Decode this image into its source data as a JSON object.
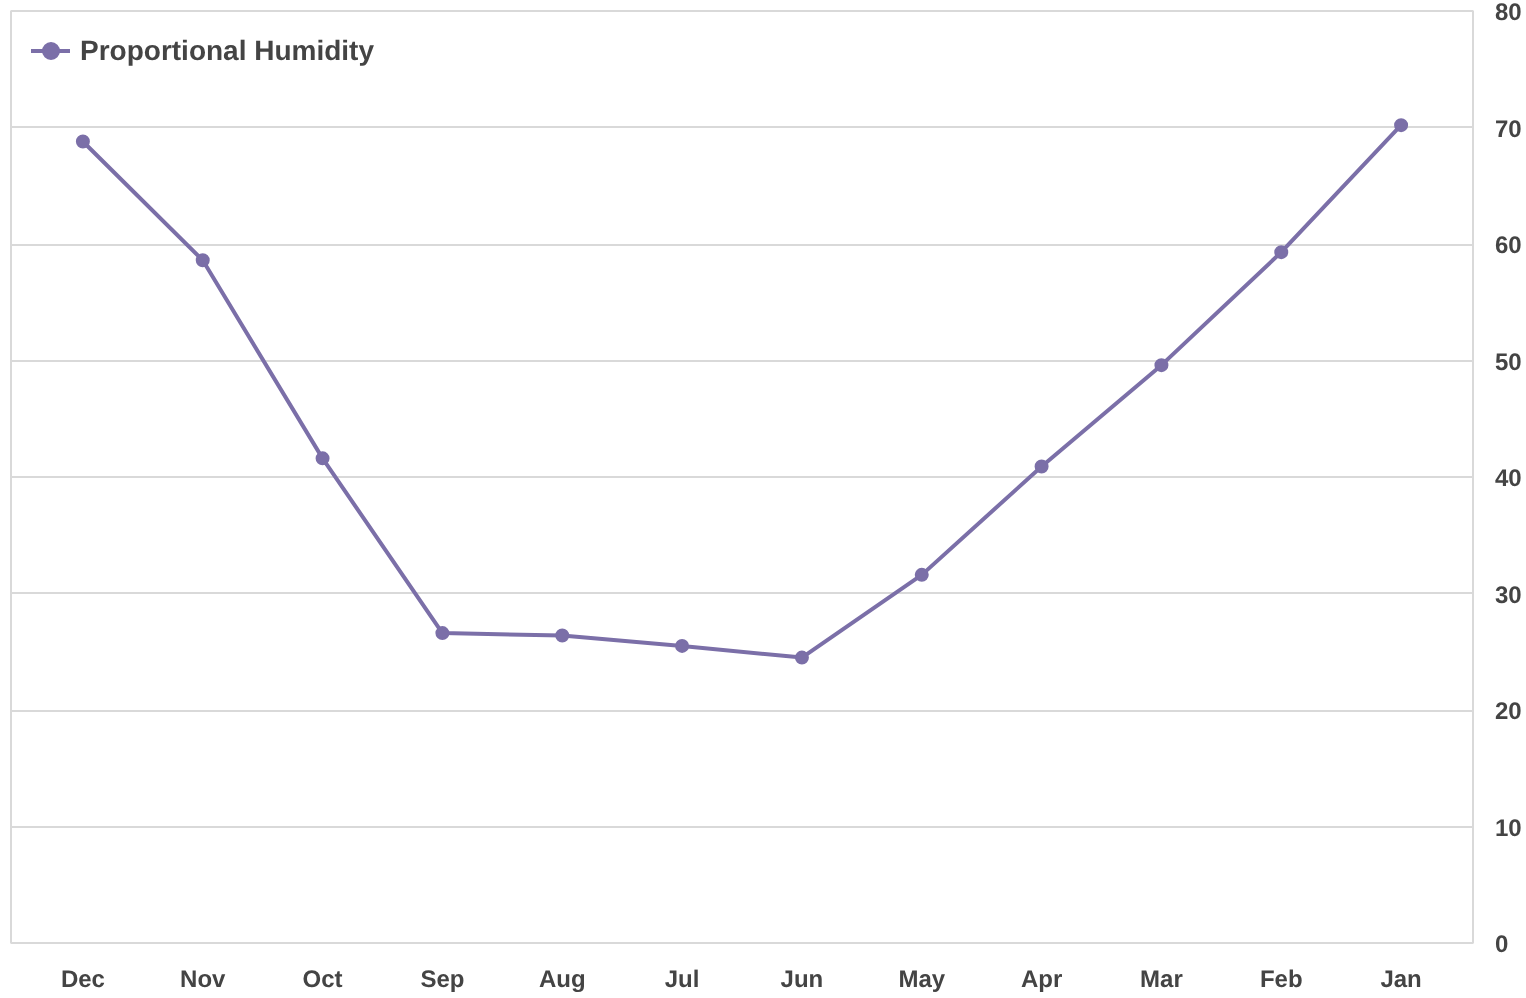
{
  "chart_data": {
    "type": "line",
    "categories": [
      "Dec",
      "Nov",
      "Oct",
      "Sep",
      "Aug",
      "Jul",
      "Jun",
      "May",
      "Apr",
      "Mar",
      "Feb",
      "Jan"
    ],
    "series": [
      {
        "name": "Proportional Humidity",
        "color": "#7b6fa8",
        "values": [
          68.8,
          58.6,
          41.6,
          26.6,
          26.4,
          25.5,
          24.5,
          31.6,
          40.9,
          49.6,
          59.3,
          70.2
        ]
      }
    ],
    "ylim": [
      0,
      80
    ],
    "yticks": [
      0,
      10,
      20,
      30,
      40,
      50,
      60,
      70,
      80
    ],
    "grid": "y",
    "legend": "top left",
    "marker": "circle",
    "line_style": "solid"
  }
}
